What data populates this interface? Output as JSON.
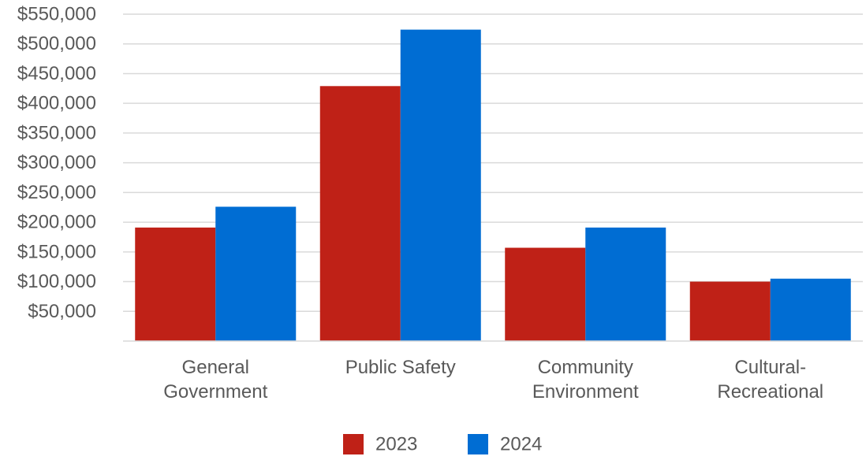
{
  "chart_data": {
    "type": "bar",
    "categories": [
      [
        "General",
        "Government"
      ],
      [
        "Public Safety"
      ],
      [
        "Community",
        "Environment"
      ],
      [
        "Cultural-",
        "Recreational"
      ]
    ],
    "series": [
      {
        "name": "2023",
        "color": "#bf2117",
        "values": [
          191000,
          429000,
          157000,
          100000
        ]
      },
      {
        "name": "2024",
        "color": "#006dd3",
        "values": [
          226000,
          524000,
          191000,
          105000
        ]
      }
    ],
    "y_ticks": [
      {
        "value": 50000,
        "label": "$50,000"
      },
      {
        "value": 100000,
        "label": "$100,000"
      },
      {
        "value": 150000,
        "label": "$150,000"
      },
      {
        "value": 200000,
        "label": "$200,000"
      },
      {
        "value": 250000,
        "label": "$250,000"
      },
      {
        "value": 300000,
        "label": "$300,000"
      },
      {
        "value": 350000,
        "label": "$350,000"
      },
      {
        "value": 400000,
        "label": "$400,000"
      },
      {
        "value": 450000,
        "label": "$450,000"
      },
      {
        "value": 500000,
        "label": "$500,000"
      },
      {
        "value": 550000,
        "label": "$550,000"
      }
    ],
    "ylim": [
      0,
      550000
    ],
    "grid": true,
    "legend": "bottom-center",
    "title": "",
    "xlabel": "",
    "ylabel": ""
  }
}
